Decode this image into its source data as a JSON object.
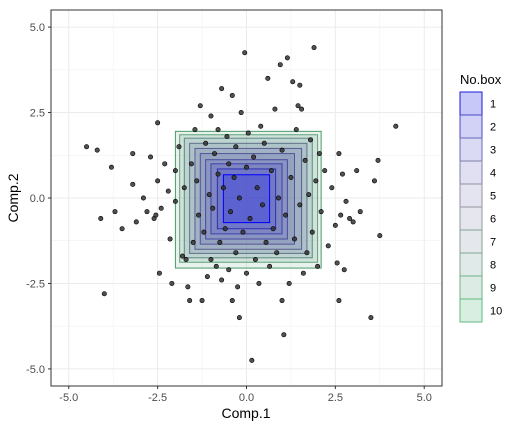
{
  "chart_data": {
    "type": "scatter",
    "xlabel": "Comp.1",
    "ylabel": "Comp.2",
    "xlim": [
      -5.5,
      5.5
    ],
    "ylim": [
      -5.5,
      5.5
    ],
    "x_ticks": [
      -5.0,
      -2.5,
      0.0,
      2.5,
      5.0
    ],
    "y_ticks": [
      -5.0,
      -2.5,
      0.0,
      2.5,
      5.0
    ],
    "x_tick_labels": [
      "-5.0",
      "-2.5",
      "0.0",
      "2.5",
      "5.0"
    ],
    "y_tick_labels": [
      "-5.0",
      "-2.5",
      "0.0",
      "2.5",
      "5.0"
    ],
    "grid": true,
    "point_color": "#333333",
    "legend": {
      "title": "No.box",
      "position": "right",
      "entries": [
        "1",
        "2",
        "3",
        "4",
        "5",
        "6",
        "7",
        "8",
        "9",
        "10"
      ],
      "colors": [
        "#c8c8f8",
        "#d2d2f6",
        "#dadaf4",
        "#e0e0f2",
        "#e4e4f0",
        "#e6e6ee",
        "#e4e8ec",
        "#e0eae8",
        "#dcece4",
        "#d8eee0"
      ],
      "borders": [
        "#1a1ad8",
        "#4848c8",
        "#6868b8",
        "#8080a8",
        "#9090a0",
        "#90989c",
        "#88a098",
        "#80a890",
        "#70b088",
        "#60b880"
      ]
    },
    "boxes": [
      {
        "no": 1,
        "x": [
          -0.65,
          0.65
        ],
        "y": [
          -0.72,
          0.68
        ],
        "fill": "#0000ff",
        "border": "#0000ff"
      },
      {
        "no": 2,
        "x": [
          -0.82,
          0.82
        ],
        "y": [
          -0.9,
          0.85
        ],
        "fill": "#3a3ad0",
        "border": "#3030b0"
      },
      {
        "no": 3,
        "x": [
          -1.0,
          1.0
        ],
        "y": [
          -1.05,
          1.0
        ],
        "fill": "#4a4ac8",
        "border": "#4040a8"
      },
      {
        "no": 4,
        "x": [
          -1.15,
          1.15
        ],
        "y": [
          -1.2,
          1.12
        ],
        "fill": "#5656c0",
        "border": "#4a4aa0"
      },
      {
        "no": 5,
        "x": [
          -1.3,
          1.35
        ],
        "y": [
          -1.35,
          1.3
        ],
        "fill": "#6060b8",
        "border": "#545498"
      },
      {
        "no": 6,
        "x": [
          -1.45,
          1.55
        ],
        "y": [
          -1.5,
          1.45
        ],
        "fill": "#6868b0",
        "border": "#5c5c90"
      },
      {
        "no": 7,
        "x": [
          -1.6,
          1.7
        ],
        "y": [
          -1.62,
          1.6
        ],
        "fill": "#6878a8",
        "border": "#607088"
      },
      {
        "no": 8,
        "x": [
          -1.75,
          1.85
        ],
        "y": [
          -1.75,
          1.75
        ],
        "fill": "#6890a0",
        "border": "#608880"
      },
      {
        "no": 9,
        "x": [
          -1.88,
          2.0
        ],
        "y": [
          -1.88,
          1.85
        ],
        "fill": "#68a090",
        "border": "#60a078"
      },
      {
        "no": 10,
        "x": [
          -2.0,
          2.1
        ],
        "y": [
          -2.05,
          1.95
        ],
        "fill": "#78b898",
        "border": "#4a9a6a"
      }
    ],
    "points": [
      [
        -4.5,
        1.5
      ],
      [
        -4.2,
        1.4
      ],
      [
        -4.1,
        -0.6
      ],
      [
        -4.0,
        -2.8
      ],
      [
        -3.8,
        0.9
      ],
      [
        -3.7,
        -0.4
      ],
      [
        -3.5,
        -0.9
      ],
      [
        -3.2,
        1.3
      ],
      [
        -3.2,
        0.4
      ],
      [
        -3.1,
        -0.7
      ],
      [
        -2.9,
        0.0
      ],
      [
        -2.8,
        -0.4
      ],
      [
        -2.7,
        1.2
      ],
      [
        -2.6,
        -0.6
      ],
      [
        -2.55,
        -0.5
      ],
      [
        -2.5,
        2.2
      ],
      [
        -2.5,
        0.5
      ],
      [
        -2.45,
        -2.2
      ],
      [
        -2.4,
        -0.3
      ],
      [
        -2.3,
        1.0
      ],
      [
        -2.2,
        0.2
      ],
      [
        -2.15,
        -1.2
      ],
      [
        -2.1,
        -2.5
      ],
      [
        -2.0,
        0.8
      ],
      [
        -2.0,
        -0.1
      ],
      [
        -1.9,
        1.5
      ],
      [
        -1.8,
        -1.7
      ],
      [
        -1.75,
        0.3
      ],
      [
        -1.7,
        -1.8
      ],
      [
        -1.65,
        -2.6
      ],
      [
        -1.6,
        -3.0
      ],
      [
        -1.55,
        1.0
      ],
      [
        -1.5,
        -1.3
      ],
      [
        -1.45,
        2.0
      ],
      [
        -1.4,
        0.5
      ],
      [
        -1.35,
        -0.5
      ],
      [
        -1.3,
        2.7
      ],
      [
        -1.25,
        -3.0
      ],
      [
        -1.2,
        -1.0
      ],
      [
        -1.15,
        1.6
      ],
      [
        -1.1,
        -2.3
      ],
      [
        -1.05,
        0.1
      ],
      [
        -1.0,
        2.4
      ],
      [
        -1.0,
        -1.8
      ],
      [
        -0.95,
        -0.3
      ],
      [
        -0.9,
        1.3
      ],
      [
        -0.85,
        -2.0
      ],
      [
        -0.8,
        0.7
      ],
      [
        -0.8,
        2.0
      ],
      [
        -0.75,
        -1.3
      ],
      [
        -0.7,
        3.2
      ],
      [
        -0.7,
        -2.4
      ],
      [
        -0.65,
        0.3
      ],
      [
        -0.6,
        -0.9
      ],
      [
        -0.55,
        1.8
      ],
      [
        -0.5,
        -2.1
      ],
      [
        -0.5,
        1.0
      ],
      [
        -0.45,
        -0.4
      ],
      [
        -0.4,
        3.0
      ],
      [
        -0.4,
        -3.0
      ],
      [
        -0.35,
        0.6
      ],
      [
        -0.3,
        -1.6
      ],
      [
        -0.3,
        1.5
      ],
      [
        -0.25,
        -2.6
      ],
      [
        -0.2,
        0.0
      ],
      [
        -0.2,
        -3.5
      ],
      [
        -0.15,
        2.5
      ],
      [
        -0.1,
        -1.0
      ],
      [
        -0.05,
        4.25
      ],
      [
        0.0,
        0.9
      ],
      [
        0.0,
        -2.2
      ],
      [
        0.05,
        1.9
      ],
      [
        0.1,
        -0.6
      ],
      [
        0.15,
        -4.75
      ],
      [
        0.2,
        1.2
      ],
      [
        0.25,
        -1.8
      ],
      [
        0.3,
        0.3
      ],
      [
        0.35,
        -2.5
      ],
      [
        0.4,
        2.1
      ],
      [
        0.45,
        -0.2
      ],
      [
        0.5,
        1.6
      ],
      [
        0.55,
        -1.3
      ],
      [
        0.6,
        3.5
      ],
      [
        0.65,
        -2.0
      ],
      [
        0.7,
        0.8
      ],
      [
        0.75,
        -0.9
      ],
      [
        0.8,
        2.6
      ],
      [
        0.85,
        -1.6
      ],
      [
        0.9,
        0.0
      ],
      [
        0.95,
        3.9
      ],
      [
        1.0,
        -3.0
      ],
      [
        1.0,
        1.4
      ],
      [
        1.05,
        -4.0
      ],
      [
        1.1,
        -0.5
      ],
      [
        1.15,
        4.1
      ],
      [
        1.2,
        -2.5
      ],
      [
        1.25,
        0.6
      ],
      [
        1.3,
        3.4
      ],
      [
        1.35,
        -1.2
      ],
      [
        1.4,
        2.0
      ],
      [
        1.45,
        2.7
      ],
      [
        1.5,
        -0.2
      ],
      [
        1.5,
        3.3
      ],
      [
        1.55,
        2.6
      ],
      [
        1.6,
        -2.2
      ],
      [
        1.65,
        1.1
      ],
      [
        1.7,
        -1.6
      ],
      [
        1.75,
        0.1
      ],
      [
        1.8,
        1.7
      ],
      [
        1.85,
        -1.0
      ],
      [
        1.9,
        4.4
      ],
      [
        1.95,
        0.5
      ],
      [
        2.0,
        -2.0
      ],
      [
        2.05,
        1.3
      ],
      [
        2.1,
        -0.4
      ],
      [
        2.2,
        0.8
      ],
      [
        2.3,
        -1.4
      ],
      [
        2.4,
        0.3
      ],
      [
        2.5,
        -0.8
      ],
      [
        2.55,
        -1.9
      ],
      [
        2.6,
        1.3
      ],
      [
        2.6,
        -3.0
      ],
      [
        2.65,
        -0.5
      ],
      [
        2.7,
        0.7
      ],
      [
        2.75,
        -2.1
      ],
      [
        2.8,
        -0.1
      ],
      [
        2.9,
        -0.6
      ],
      [
        3.0,
        -0.7
      ],
      [
        3.1,
        0.8
      ],
      [
        3.2,
        -0.4
      ],
      [
        3.5,
        -3.5
      ],
      [
        3.6,
        0.5
      ],
      [
        3.7,
        1.1
      ],
      [
        3.75,
        -1.1
      ],
      [
        4.2,
        2.1
      ]
    ]
  }
}
